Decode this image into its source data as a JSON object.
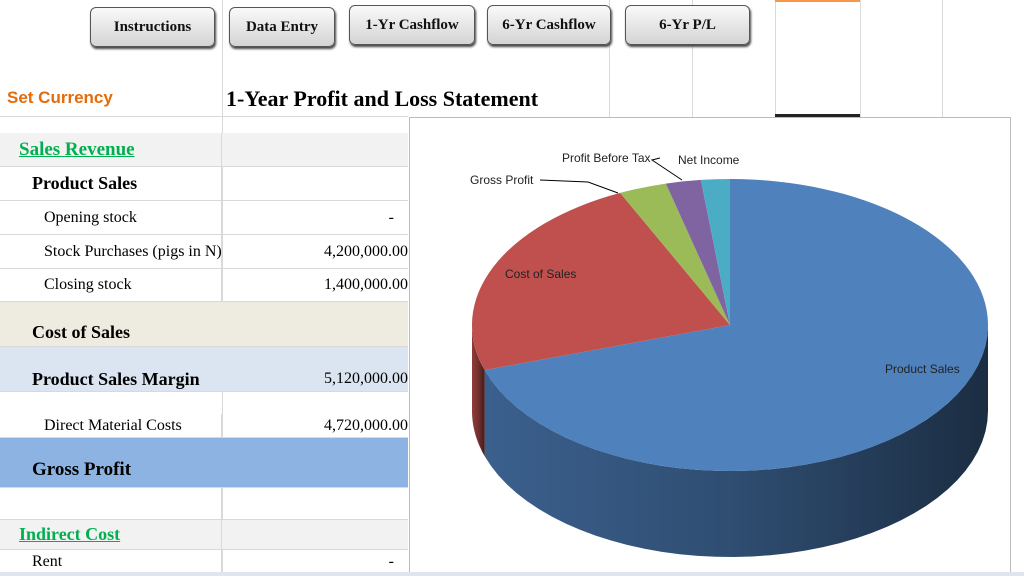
{
  "toolbar": {
    "buttons": [
      {
        "label": "Instructions"
      },
      {
        "label": "Data Entry"
      },
      {
        "label": "1-Yr Cashflow"
      },
      {
        "label": "6-Yr Cashflow"
      },
      {
        "label": "6-Yr P/L"
      }
    ]
  },
  "header": {
    "set_currency": "Set Currency",
    "title": "1-Year Profit and Loss Statement"
  },
  "rows": [
    {
      "label": "Sales Revenue",
      "value": ""
    },
    {
      "label": "Product Sales",
      "value": ""
    },
    {
      "label": "Opening stock",
      "value": "-"
    },
    {
      "label": "Stock Purchases (pigs in N)",
      "value": "4,200,000.00"
    },
    {
      "label": "Closing stock",
      "value": "1,400,000.00"
    },
    {
      "label": "Cost of Sales",
      "value": ""
    },
    {
      "label": "Product Sales Margin",
      "value": "5,120,000.00"
    },
    {
      "label": "Direct Material Costs",
      "value": "4,720,000.00"
    },
    {
      "label": "Gross Profit",
      "value": ""
    },
    {
      "label": "",
      "value": ""
    },
    {
      "label": "Indirect Cost",
      "value": ""
    },
    {
      "label": "Rent",
      "value": "-"
    }
  ],
  "colors": {
    "section_green": "#00b050",
    "currency_orange": "#e46c0a",
    "gross_profit_bg": "#8db3e2"
  },
  "chart_data": {
    "type": "pie",
    "style": "3d",
    "categories": [
      "Product Sales",
      "Cost of Sales",
      "Gross Profit",
      "Profit Before Tax",
      "Net Income"
    ],
    "values": [
      70,
      23,
      3,
      2.2,
      1.8
    ],
    "colors": [
      "#4f81bd",
      "#c0504d",
      "#9bbb59",
      "#8064a2",
      "#4bacc6"
    ],
    "legend": "none"
  }
}
